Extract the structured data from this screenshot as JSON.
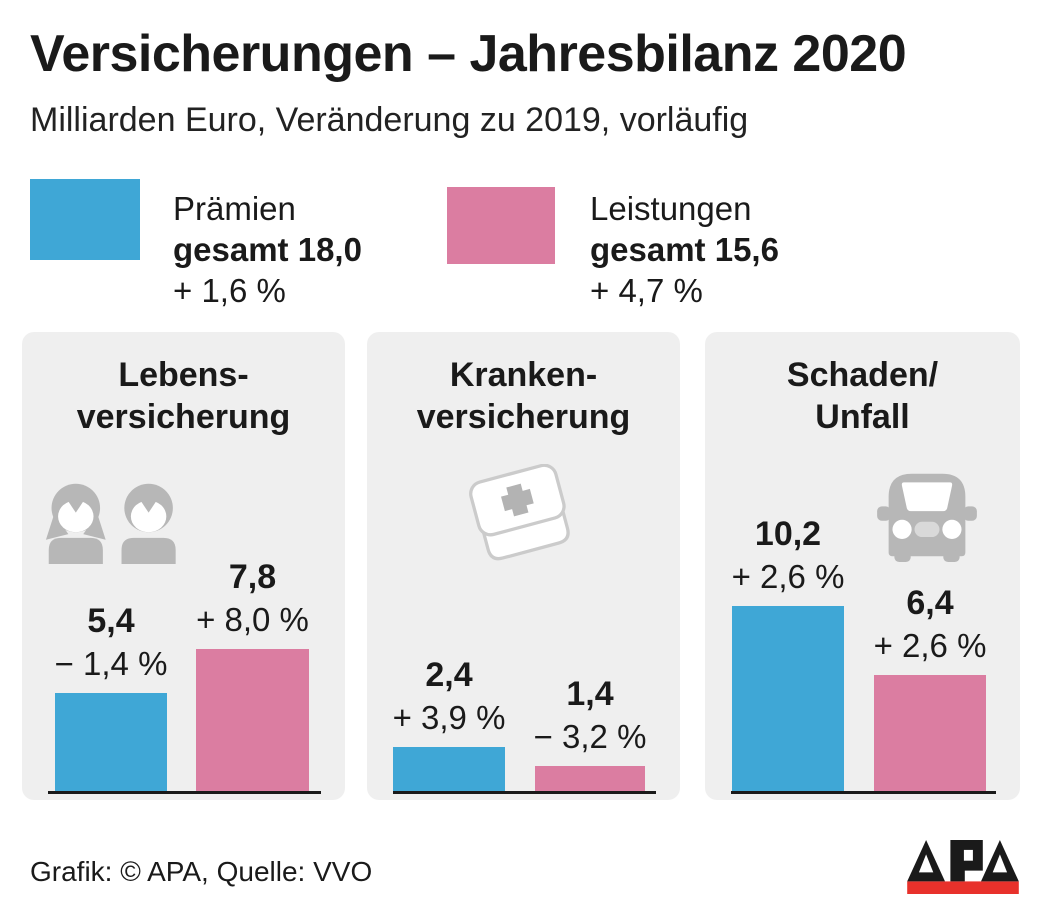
{
  "header": {
    "title": "Versicherungen – Jahresbilanz 2020",
    "subtitle": "Milliarden Euro, Veränderung zu 2019, vorläufig"
  },
  "colors": {
    "panel_bg": "#EFEFEF",
    "icon_gray": "#B7B7B7",
    "icon_light": "#CBCBCB",
    "icon_mid": "#B3B3B3",
    "grille_gray": "#D9D9D9",
    "apa_red": "#E8312B",
    "text": "#1A1A1A"
  },
  "chart_data": {
    "type": "bar",
    "title": "Versicherungen – Jahresbilanz 2020",
    "unit": "Milliarden Euro",
    "note": "Veränderung zu 2019, vorläufig",
    "legend_position": "top",
    "grid": false,
    "series": [
      {
        "name": "Prämien",
        "total": 18.0,
        "total_label": "gesamt 18,0",
        "change_label": "+ 1,6 %",
        "color": "#3FA7D6"
      },
      {
        "name": "Leistungen",
        "total": 15.6,
        "total_label": "gesamt 15,6",
        "change_label": "+ 4,7 %",
        "color": "#DB7DA1"
      }
    ],
    "groups": [
      {
        "category_line1": "Lebens-",
        "category_line2": "versicherung",
        "icon": "people-icon",
        "bars": [
          {
            "series": "Prämien",
            "value": 5.4,
            "value_label": "5,4",
            "change_label": "− 1,4 %"
          },
          {
            "series": "Leistungen",
            "value": 7.8,
            "value_label": "7,8",
            "change_label": "+ 8,0 %"
          }
        ]
      },
      {
        "category_line1": "Kranken-",
        "category_line2": "versicherung",
        "icon": "first-aid-kit-icon",
        "bars": [
          {
            "series": "Prämien",
            "value": 2.4,
            "value_label": "2,4",
            "change_label": "+ 3,9 %"
          },
          {
            "series": "Leistungen",
            "value": 1.4,
            "value_label": "1,4",
            "change_label": "− 3,2 %"
          }
        ]
      },
      {
        "category_line1": "Schaden/",
        "category_line2": "Unfall",
        "icon": "car-icon",
        "bars": [
          {
            "series": "Prämien",
            "value": 10.2,
            "value_label": "10,2",
            "change_label": "+ 2,6 %"
          },
          {
            "series": "Leistungen",
            "value": 6.4,
            "value_label": "6,4",
            "change_label": "+ 2,6 %"
          }
        ]
      }
    ]
  },
  "footer": {
    "credit": "Grafik: © APA, Quelle: VVO",
    "logo_text": "APA"
  }
}
